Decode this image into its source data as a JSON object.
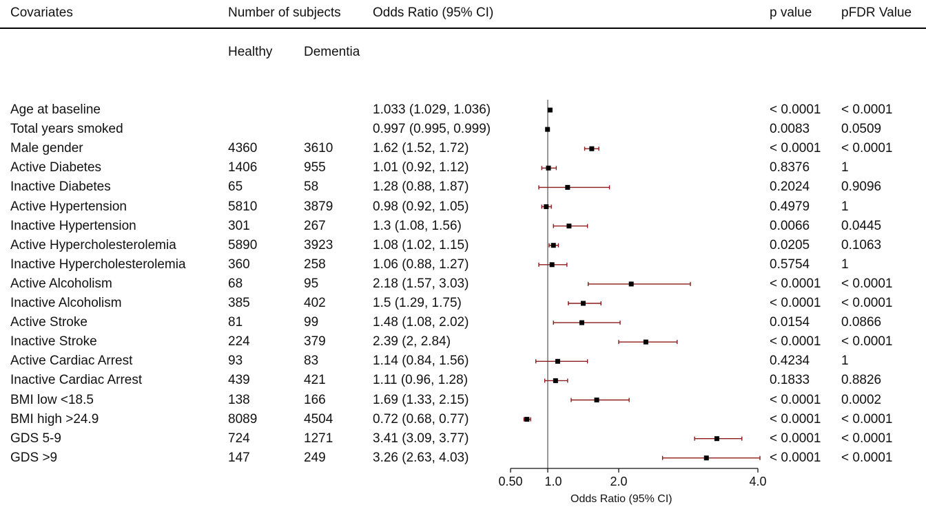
{
  "headers": {
    "covariates": "Covariates",
    "subjects": "Number of subjects",
    "healthy": "Healthy",
    "dementia": "Dementia",
    "or": "Odds Ratio (95% CI)",
    "p": "p value",
    "pfdr": "pFDR Value"
  },
  "chart_data": {
    "type": "forest",
    "xlabel": "Odds Ratio (95% CI)",
    "reference_line": 1.0,
    "xlim": [
      0.5,
      4.0
    ],
    "ticks": [
      {
        "value": 0.5,
        "label": "0.50"
      },
      {
        "value": 1.0,
        "label": "1.0"
      },
      {
        "value": 2.0,
        "label": "2.0"
      },
      {
        "value": 4.0,
        "label": "4.0"
      }
    ],
    "ci_color": "#8b1a1a",
    "rows": [
      {
        "label": "Age at baseline",
        "healthy": "",
        "dementia": "",
        "or_text": "1.033 (1.029, 1.036)",
        "or": 1.033,
        "lo": 1.029,
        "hi": 1.036,
        "p": "< 0.0001",
        "pfdr": "< 0.0001"
      },
      {
        "label": "Total years smoked",
        "healthy": "",
        "dementia": "",
        "or_text": "0.997 (0.995, 0.999)",
        "or": 0.997,
        "lo": 0.995,
        "hi": 0.999,
        "p": "0.0083",
        "pfdr": "0.0509"
      },
      {
        "label": "Male gender",
        "healthy": "4360",
        "dementia": "3610",
        "or_text": "1.62 (1.52, 1.72)",
        "or": 1.62,
        "lo": 1.52,
        "hi": 1.72,
        "p": "< 0.0001",
        "pfdr": "< 0.0001"
      },
      {
        "label": "Active Diabetes",
        "healthy": "1406",
        "dementia": "955",
        "or_text": "1.01 (0.92, 1.12)",
        "or": 1.01,
        "lo": 0.92,
        "hi": 1.12,
        "p": "0.8376",
        "pfdr": "1"
      },
      {
        "label": "Inactive Diabetes",
        "healthy": "65",
        "dementia": "58",
        "or_text": "1.28 (0.88, 1.87)",
        "or": 1.28,
        "lo": 0.88,
        "hi": 1.87,
        "p": "0.2024",
        "pfdr": "0.9096"
      },
      {
        "label": "Active Hypertension",
        "healthy": "5810",
        "dementia": "3879",
        "or_text": "0.98 (0.92, 1.05)",
        "or": 0.98,
        "lo": 0.92,
        "hi": 1.05,
        "p": "0.4979",
        "pfdr": "1"
      },
      {
        "label": "Inactive Hypertension",
        "healthy": "301",
        "dementia": "267",
        "or_text": "1.3 (1.08, 1.56)",
        "or": 1.3,
        "lo": 1.08,
        "hi": 1.56,
        "p": "0.0066",
        "pfdr": "0.0445"
      },
      {
        "label": "Active Hypercholesterolemia",
        "healthy": "5890",
        "dementia": "3923",
        "or_text": "1.08 (1.02, 1.15)",
        "or": 1.08,
        "lo": 1.02,
        "hi": 1.15,
        "p": "0.0205",
        "pfdr": "0.1063"
      },
      {
        "label": "Inactive Hypercholesterolemia",
        "healthy": "360",
        "dementia": "258",
        "or_text": "1.06 (0.88, 1.27)",
        "or": 1.06,
        "lo": 0.88,
        "hi": 1.27,
        "p": "0.5754",
        "pfdr": "1"
      },
      {
        "label": "Active Alcoholism",
        "healthy": "68",
        "dementia": "95",
        "or_text": "2.18 (1.57, 3.03)",
        "or": 2.18,
        "lo": 1.57,
        "hi": 3.03,
        "p": "< 0.0001",
        "pfdr": "< 0.0001"
      },
      {
        "label": "Inactive Alcoholism",
        "healthy": "385",
        "dementia": "402",
        "or_text": "1.5 (1.29, 1.75)",
        "or": 1.5,
        "lo": 1.29,
        "hi": 1.75,
        "p": "< 0.0001",
        "pfdr": "< 0.0001"
      },
      {
        "label": "Active Stroke",
        "healthy": "81",
        "dementia": "99",
        "or_text": "1.48 (1.08, 2.02)",
        "or": 1.48,
        "lo": 1.08,
        "hi": 2.02,
        "p": "0.0154",
        "pfdr": "0.0866"
      },
      {
        "label": "Inactive Stroke",
        "healthy": "224",
        "dementia": "379",
        "or_text": "2.39 (2, 2.84)",
        "or": 2.39,
        "lo": 2.0,
        "hi": 2.84,
        "p": "< 0.0001",
        "pfdr": "< 0.0001"
      },
      {
        "label": "Active Cardiac Arrest",
        "healthy": "93",
        "dementia": "83",
        "or_text": "1.14 (0.84, 1.56)",
        "or": 1.14,
        "lo": 0.84,
        "hi": 1.56,
        "p": "0.4234",
        "pfdr": "1"
      },
      {
        "label": "Inactive Cardiac Arrest",
        "healthy": "439",
        "dementia": "421",
        "or_text": "1.11 (0.96, 1.28)",
        "or": 1.11,
        "lo": 0.96,
        "hi": 1.28,
        "p": "0.1833",
        "pfdr": "0.8826"
      },
      {
        "label": "BMI low <18.5",
        "healthy": "138",
        "dementia": "166",
        "or_text": "1.69 (1.33, 2.15)",
        "or": 1.69,
        "lo": 1.33,
        "hi": 2.15,
        "p": "< 0.0001",
        "pfdr": "0.0002"
      },
      {
        "label": "BMI high >24.9",
        "healthy": "8089",
        "dementia": "4504",
        "or_text": "0.72 (0.68, 0.77)",
        "or": 0.72,
        "lo": 0.68,
        "hi": 0.77,
        "p": "< 0.0001",
        "pfdr": "< 0.0001"
      },
      {
        "label": "GDS 5-9",
        "healthy": "724",
        "dementia": "1271",
        "or_text": "3.41 (3.09, 3.77)",
        "or": 3.41,
        "lo": 3.09,
        "hi": 3.77,
        "p": "< 0.0001",
        "pfdr": "< 0.0001"
      },
      {
        "label": "GDS >9",
        "healthy": "147",
        "dementia": "249",
        "or_text": "3.26 (2.63, 4.03)",
        "or": 3.26,
        "lo": 2.63,
        "hi": 4.03,
        "p": "< 0.0001",
        "pfdr": "< 0.0001"
      }
    ]
  }
}
